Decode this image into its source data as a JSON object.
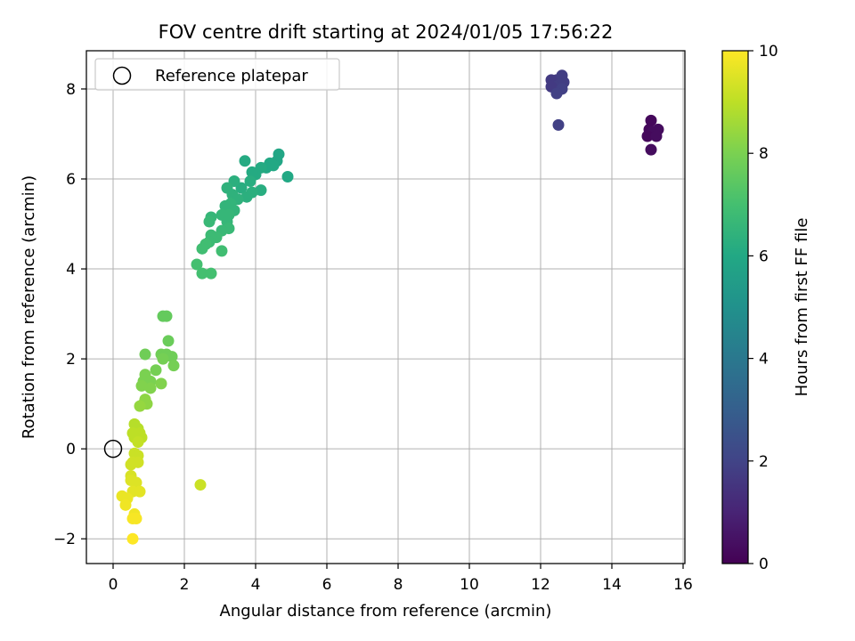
{
  "chart_data": {
    "type": "scatter",
    "title": "FOV centre drift starting at 2024/01/05 17:56:22",
    "xlabel": "Angular distance from reference (arcmin)",
    "ylabel": "Rotation from reference (arcmin)",
    "xlim": [
      -0.75,
      16.05
    ],
    "ylim": [
      -2.55,
      8.85
    ],
    "x_ticks": [
      0,
      2,
      4,
      6,
      8,
      10,
      12,
      14,
      16
    ],
    "y_ticks": [
      -2,
      0,
      2,
      4,
      6,
      8
    ],
    "y_tick_labels": [
      "−2",
      "0",
      "2",
      "4",
      "6",
      "8"
    ],
    "grid": true,
    "legend": {
      "placement": "top-left",
      "label": "Reference platepar",
      "marker": "open-circle"
    },
    "reference_point": {
      "x": 0,
      "y": 0
    },
    "colorbar": {
      "label": "Hours from first FF file",
      "range": [
        0,
        10
      ],
      "ticks": [
        0,
        2,
        4,
        6,
        8,
        10
      ],
      "colormap": "viridis"
    },
    "series": [
      {
        "points": [
          {
            "x": 15.1,
            "y": 7.3,
            "c": 0.2
          },
          {
            "x": 15.05,
            "y": 7.1,
            "c": 0.2
          },
          {
            "x": 15.15,
            "y": 7.05,
            "c": 0.3
          },
          {
            "x": 15.3,
            "y": 7.1,
            "c": 0.3
          },
          {
            "x": 15.0,
            "y": 6.95,
            "c": 0.2
          },
          {
            "x": 15.25,
            "y": 6.95,
            "c": 0.3
          },
          {
            "x": 15.1,
            "y": 6.65,
            "c": 0.3
          },
          {
            "x": 12.3,
            "y": 8.2,
            "c": 1.7
          },
          {
            "x": 12.45,
            "y": 8.2,
            "c": 1.7
          },
          {
            "x": 12.6,
            "y": 8.3,
            "c": 1.8
          },
          {
            "x": 12.65,
            "y": 8.15,
            "c": 1.8
          },
          {
            "x": 12.55,
            "y": 8.1,
            "c": 1.8
          },
          {
            "x": 12.4,
            "y": 8.05,
            "c": 1.8
          },
          {
            "x": 12.3,
            "y": 8.05,
            "c": 1.7
          },
          {
            "x": 12.6,
            "y": 8.0,
            "c": 1.9
          },
          {
            "x": 12.45,
            "y": 7.9,
            "c": 1.9
          },
          {
            "x": 12.5,
            "y": 7.2,
            "c": 1.9
          },
          {
            "x": 4.9,
            "y": 6.05,
            "c": 6.0
          },
          {
            "x": 4.65,
            "y": 6.55,
            "c": 5.9
          },
          {
            "x": 4.6,
            "y": 6.4,
            "c": 5.9
          },
          {
            "x": 4.5,
            "y": 6.3,
            "c": 6.0
          },
          {
            "x": 4.4,
            "y": 6.35,
            "c": 6.0
          },
          {
            "x": 4.3,
            "y": 6.25,
            "c": 6.0
          },
          {
            "x": 4.15,
            "y": 6.25,
            "c": 6.1
          },
          {
            "x": 4.0,
            "y": 6.1,
            "c": 6.1
          },
          {
            "x": 3.9,
            "y": 6.15,
            "c": 6.1
          },
          {
            "x": 3.7,
            "y": 6.4,
            "c": 6.1
          },
          {
            "x": 3.85,
            "y": 5.95,
            "c": 6.2
          },
          {
            "x": 3.6,
            "y": 5.8,
            "c": 6.2
          },
          {
            "x": 4.15,
            "y": 5.75,
            "c": 6.2
          },
          {
            "x": 3.9,
            "y": 5.7,
            "c": 6.3
          },
          {
            "x": 3.75,
            "y": 5.6,
            "c": 6.3
          },
          {
            "x": 3.4,
            "y": 5.95,
            "c": 6.3
          },
          {
            "x": 3.2,
            "y": 5.8,
            "c": 6.4
          },
          {
            "x": 3.35,
            "y": 5.65,
            "c": 6.4
          },
          {
            "x": 3.5,
            "y": 5.55,
            "c": 6.4
          },
          {
            "x": 3.3,
            "y": 5.45,
            "c": 6.5
          },
          {
            "x": 3.15,
            "y": 5.4,
            "c": 6.5
          },
          {
            "x": 3.4,
            "y": 5.3,
            "c": 6.5
          },
          {
            "x": 3.25,
            "y": 5.2,
            "c": 6.6
          },
          {
            "x": 3.05,
            "y": 5.2,
            "c": 6.6
          },
          {
            "x": 3.2,
            "y": 5.05,
            "c": 6.6
          },
          {
            "x": 2.75,
            "y": 5.15,
            "c": 6.6
          },
          {
            "x": 2.7,
            "y": 5.05,
            "c": 6.7
          },
          {
            "x": 3.25,
            "y": 4.9,
            "c": 6.7
          },
          {
            "x": 3.05,
            "y": 4.85,
            "c": 6.7
          },
          {
            "x": 2.9,
            "y": 4.7,
            "c": 6.8
          },
          {
            "x": 2.75,
            "y": 4.75,
            "c": 6.8
          },
          {
            "x": 2.7,
            "y": 4.6,
            "c": 6.8
          },
          {
            "x": 2.6,
            "y": 4.55,
            "c": 6.9
          },
          {
            "x": 2.5,
            "y": 4.45,
            "c": 6.9
          },
          {
            "x": 3.05,
            "y": 4.4,
            "c": 6.9
          },
          {
            "x": 2.35,
            "y": 4.1,
            "c": 7.0
          },
          {
            "x": 2.5,
            "y": 3.9,
            "c": 7.0
          },
          {
            "x": 2.75,
            "y": 3.9,
            "c": 7.0
          },
          {
            "x": 1.4,
            "y": 2.95,
            "c": 7.6
          },
          {
            "x": 1.5,
            "y": 2.95,
            "c": 7.6
          },
          {
            "x": 1.55,
            "y": 2.4,
            "c": 7.7
          },
          {
            "x": 0.9,
            "y": 2.1,
            "c": 7.8
          },
          {
            "x": 1.35,
            "y": 2.1,
            "c": 7.8
          },
          {
            "x": 1.5,
            "y": 2.1,
            "c": 7.8
          },
          {
            "x": 1.65,
            "y": 2.05,
            "c": 7.8
          },
          {
            "x": 1.4,
            "y": 2.0,
            "c": 7.9
          },
          {
            "x": 1.7,
            "y": 1.85,
            "c": 7.9
          },
          {
            "x": 1.2,
            "y": 1.75,
            "c": 7.9
          },
          {
            "x": 0.9,
            "y": 1.65,
            "c": 8.0
          },
          {
            "x": 0.85,
            "y": 1.5,
            "c": 8.0
          },
          {
            "x": 1.05,
            "y": 1.5,
            "c": 8.0
          },
          {
            "x": 1.35,
            "y": 1.45,
            "c": 8.1
          },
          {
            "x": 0.8,
            "y": 1.4,
            "c": 8.1
          },
          {
            "x": 1.05,
            "y": 1.35,
            "c": 8.1
          },
          {
            "x": 0.9,
            "y": 1.1,
            "c": 8.3
          },
          {
            "x": 0.85,
            "y": 1.0,
            "c": 8.3
          },
          {
            "x": 0.95,
            "y": 1.0,
            "c": 8.3
          },
          {
            "x": 0.75,
            "y": 0.95,
            "c": 8.4
          },
          {
            "x": 0.6,
            "y": 0.55,
            "c": 8.9
          },
          {
            "x": 0.7,
            "y": 0.45,
            "c": 8.9
          },
          {
            "x": 0.55,
            "y": 0.35,
            "c": 9.0
          },
          {
            "x": 0.75,
            "y": 0.35,
            "c": 9.0
          },
          {
            "x": 0.6,
            "y": 0.25,
            "c": 9.0
          },
          {
            "x": 0.8,
            "y": 0.25,
            "c": 9.0
          },
          {
            "x": 0.7,
            "y": 0.15,
            "c": 9.1
          },
          {
            "x": 0.6,
            "y": -0.1,
            "c": 9.2
          },
          {
            "x": 0.7,
            "y": -0.15,
            "c": 9.2
          },
          {
            "x": 0.55,
            "y": -0.3,
            "c": 9.3
          },
          {
            "x": 0.7,
            "y": -0.3,
            "c": 9.3
          },
          {
            "x": 0.5,
            "y": -0.35,
            "c": 9.3
          },
          {
            "x": 0.5,
            "y": -0.6,
            "c": 9.4
          },
          {
            "x": 0.5,
            "y": -0.7,
            "c": 9.5
          },
          {
            "x": 0.65,
            "y": -0.75,
            "c": 9.5
          },
          {
            "x": 0.55,
            "y": -0.95,
            "c": 9.6
          },
          {
            "x": 0.75,
            "y": -0.95,
            "c": 9.6
          },
          {
            "x": 0.25,
            "y": -1.05,
            "c": 9.7
          },
          {
            "x": 0.4,
            "y": -1.1,
            "c": 9.7
          },
          {
            "x": 0.35,
            "y": -1.25,
            "c": 9.8
          },
          {
            "x": 0.6,
            "y": -1.45,
            "c": 9.8
          },
          {
            "x": 0.55,
            "y": -1.55,
            "c": 9.9
          },
          {
            "x": 0.65,
            "y": -1.55,
            "c": 9.9
          },
          {
            "x": 0.55,
            "y": -2.0,
            "c": 10.0
          },
          {
            "x": 2.45,
            "y": -0.8,
            "c": 9.2
          }
        ]
      }
    ]
  }
}
